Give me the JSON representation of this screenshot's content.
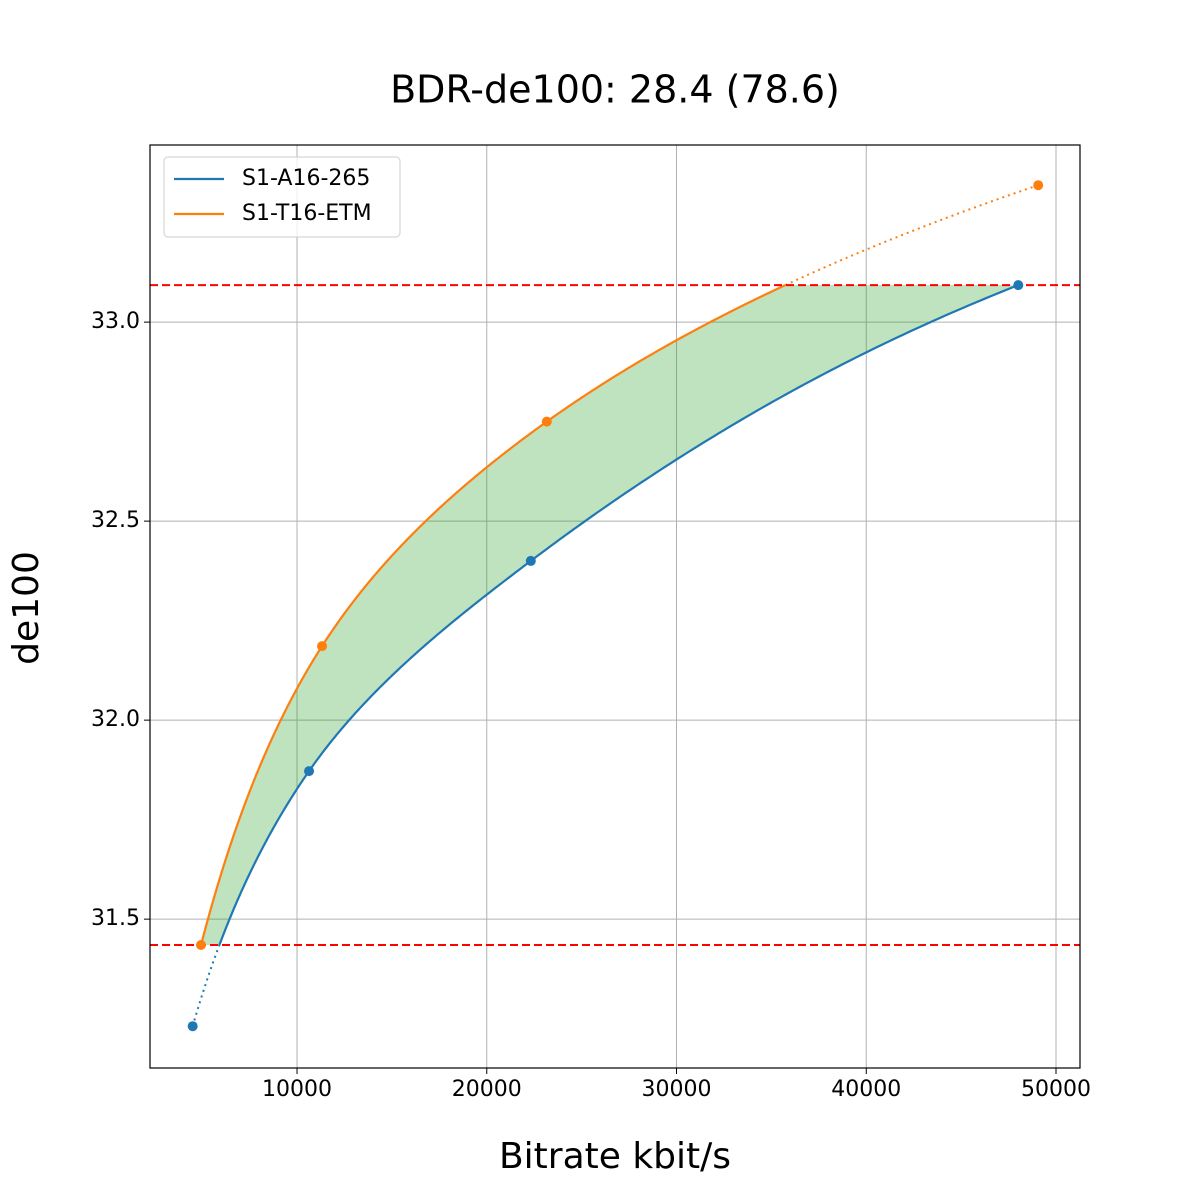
{
  "chart_data": {
    "type": "line",
    "title": "BDR-de100: 28.4 (78.6)",
    "x_label": "Bitrate kbit/s",
    "y_label": "de100",
    "series": [
      {
        "name": "S1-A16-265",
        "color": "#1f77b4",
        "x": [
          4500,
          10633,
          22320,
          48013
        ],
        "values": [
          31.231,
          31.872,
          32.4,
          33.093
        ]
      },
      {
        "name": "S1-T16-ETM",
        "color": "#ff7f0e",
        "x": [
          4939,
          11318,
          23163,
          49063
        ],
        "values": [
          31.435,
          32.186,
          32.75,
          33.344
        ]
      }
    ],
    "hlines": [
      33.093,
      31.435
    ],
    "hline_color": "#ff0000",
    "fill_color": "#2ca02c",
    "xlim": [
      2251,
      51265
    ],
    "ylim": [
      31.126,
      33.445
    ],
    "xticks": [
      10000,
      20000,
      30000,
      40000,
      50000
    ],
    "yticks": [
      31.5,
      {
        "value": 32,
        "label": "32.0"
      },
      32.5,
      {
        "value": 33,
        "label": "33.0"
      }
    ],
    "grid": true,
    "legend": "upper left"
  }
}
